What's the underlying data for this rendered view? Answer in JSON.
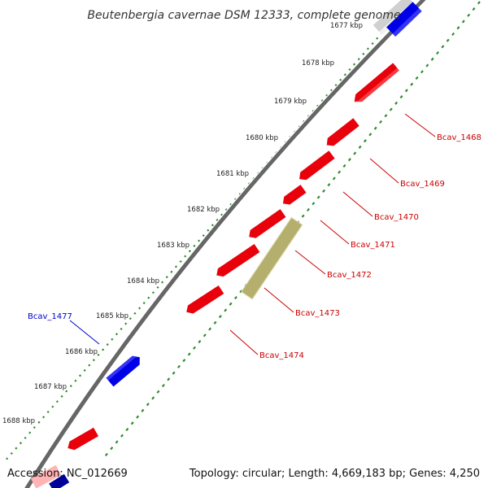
{
  "title": "Beutenbergia cavernae DSM 12333, complete genome",
  "footer": {
    "accession": "Accession: NC_012669",
    "summary": "Topology: circular; Length: 4,669,183 bp; Genes: 4,250"
  },
  "colors": {
    "forward_gene": "#e8000b",
    "reverse_gene": "#0000e6",
    "rna_feature": "#b5af6e",
    "backbone": "#666666",
    "tick_green": "#2e8b2e",
    "label_red": "#cc0000",
    "label_blue": "#0000cc"
  },
  "ticks": [
    {
      "label": "1677 kbp"
    },
    {
      "label": "1678 kbp"
    },
    {
      "label": "1679 kbp"
    },
    {
      "label": "1680 kbp"
    },
    {
      "label": "1681 kbp"
    },
    {
      "label": "1682 kbp"
    },
    {
      "label": "1683 kbp"
    },
    {
      "label": "1684 kbp"
    },
    {
      "label": "1685 kbp"
    },
    {
      "label": "1686 kbp"
    },
    {
      "label": "1687 kbp"
    },
    {
      "label": "1688 kbp"
    }
  ],
  "gene_labels": [
    {
      "name": "Bcav_1468",
      "strand": "forward"
    },
    {
      "name": "Bcav_1469",
      "strand": "forward"
    },
    {
      "name": "Bcav_1470",
      "strand": "forward"
    },
    {
      "name": "Bcav_1471",
      "strand": "forward"
    },
    {
      "name": "Bcav_1472",
      "strand": "forward"
    },
    {
      "name": "Bcav_1473",
      "strand": "forward"
    },
    {
      "name": "Bcav_1474",
      "strand": "forward"
    },
    {
      "name": "Bcav_1477",
      "strand": "reverse"
    }
  ]
}
